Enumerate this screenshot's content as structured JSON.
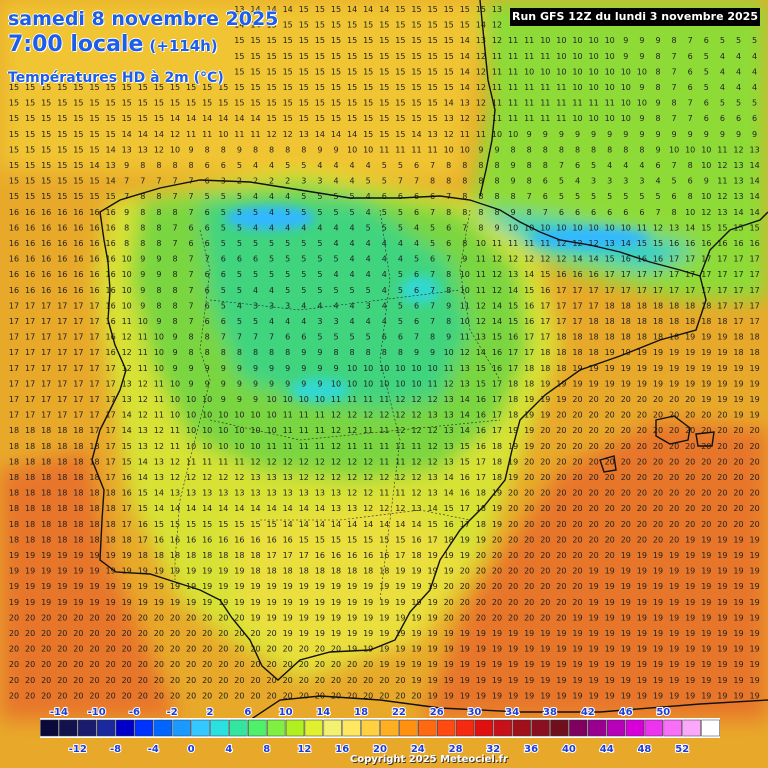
{
  "header": {
    "date_line": "samedi 8 novembre 2025",
    "time_line": "7:00 locale",
    "lead_time": "(+114h)",
    "field_line": "Températures HD à 2m (°C)"
  },
  "run_info": "Run GFS 12Z du lundi 3 novembre 2025",
  "copyright": "Copyright 2025 Meteociel.fr",
  "legend": {
    "upper_labels": [
      "-14",
      "-10",
      "-6",
      "-2",
      "2",
      "6",
      "10",
      "14",
      "18",
      "22",
      "26",
      "30",
      "34",
      "38",
      "42",
      "46",
      "50"
    ],
    "lower_labels": [
      "-12",
      "-8",
      "-4",
      "0",
      "4",
      "8",
      "12",
      "16",
      "20",
      "24",
      "28",
      "32",
      "36",
      "40",
      "44",
      "48",
      "52"
    ],
    "colors": [
      "#0a0a3a",
      "#12124f",
      "#1a1a6e",
      "#1a2a9e",
      "#0000c8",
      "#0033ff",
      "#0066ff",
      "#1a9aff",
      "#33c8ff",
      "#2ae0e0",
      "#33e6a0",
      "#4ff06a",
      "#80f040",
      "#b0f020",
      "#e0f030",
      "#f4f070",
      "#ffe860",
      "#ffd040",
      "#ffb020",
      "#ff9010",
      "#ff6a10",
      "#ff4a10",
      "#f52a10",
      "#e01010",
      "#c8101a",
      "#a0101a",
      "#8a1020",
      "#700f1c",
      "#800060",
      "#9a0090",
      "#b800b8",
      "#d800d8",
      "#ee33ee",
      "#f870f8",
      "#fba8fb",
      "#ffffff"
    ]
  },
  "map": {
    "region": "Iberian Peninsula",
    "palette": {
      "sea": "#e8a92a",
      "sea_warm": "#e8762a",
      "land_cool": "#7ad640",
      "land_cold": "#41d47f",
      "land_mild": "#d2e030",
      "land_mild2": "#ecdf3c",
      "coastline": "#111111",
      "text": "#222222"
    },
    "value_rows": [
      "15 15 15 15 15 14 14 14 14 14 14 14 13 13 13 14 14 14 15 15 15 14 14 14 15 15 15 15 15 15 13 11 11 10 9 9 9 9 8 8 7 7 7 7 7 7 7",
      "15 15 15 15 15 15 14 14 14 14 14 14 14 14 14 14 15 15 15 15 15 15 15 15 15 15 15 15 15 14 12 12 11 10 10 10 9 9 9 9 8 8 8 7 7 7 7",
      "15 15 15 15 15 15 15 15 15 15 15 15 15 15 15 15 15 15 15 15 15 15 15 15 15 15 15 15 14 13 12 11 11 10 10 10 10 10 9 9 9 8 7 6 5 5 5",
      "15 15 15 15 15 15 15 15 15 15 15 15 15 15 15 15 15 15 15 15 15 15 15 15 15 15 15 15 14 12 11 11 11 11 10 10 10 10 9 9 8 7 6 5 4 4 4",
      "15 15 15 15 15 15 15 15 15 15 15 15 15 15 15 15 15 15 15 15 15 15 15 15 15 15 15 15 14 12 11 11 10 10 10 10 10 10 10 10 8 7 6 5 4 4 4",
      "15 15 15 15 15 15 15 15 15 15 15 15 15 15 15 15 15 15 15 15 15 15 15 15 15 15 15 15 14 12 11 11 11 11 11 10 10 10 10 9 8 7 6 5 4 4 4",
      "15 15 15 15 15 15 15 15 15 15 15 15 15 15 15 15 15 15 15 15 15 15 15 15 15 15 15 14 13 12 11 11 11 11 11 11 11 11 10 10 9 8 7 6 5 5 5",
      "15 15 15 15 15 15 15 15 15 15 14 14 14 14 14 14 15 15 15 15 15 15 15 15 15 15 15 13 12 12 11 11 11 11 11 10 10 10 10 9 8 7 7 6 6 6 6",
      "15 15 15 15 15 15 15 14 14 14 12 11 11 10 11 11 12 12 13 14 14 14 15 15 15 14 13 12 11 11 10 10 9 9 9 9 9 9 9 9 9 9 9 9 9 9 9",
      "15 15 15 15 15 15 14 13 13 12 10 9 8 8 9 8 8 8 8 9 9 10 10 11 11 11 11 10 10 9 9 8 8 8 8 8 8 8 8 8 9 10 10 10 11 12 13",
      "15 15 15 15 15 14 13 9 8 8 8 8 6 6 5 4 4 5 5 4 4 4 4 5 5 6 7 8 8 8 8 9 8 8 7 6 5 4 4 4 6 7 8 10 12 13 14",
      "15 15 15 15 15 15 14 7 7 7 7 7 6 3 2 2 2 2 3 3 4 4 5 5 7 7 8 8 8 8 8 9 8 6 5 4 3 3 3 3 4 5 6 9 11 13 14",
      "15 15 15 15 15 15 15 7 8 8 7 7 5 5 5 4 4 4 5 5 5 5 4 6 6 6 6 7 8 8 8 8 7 6 5 5 5 5 5 5 5 6 8 10 12 13 14",
      "16 16 16 16 16 16 16 9 8 8 8 7 6 5 5 5 4 5 5 5 5 5 4 5 5 6 7 8 8 8 8 9 8 7 6 6 6 6 6 6 7 8 10 12 13 14 14",
      "16 16 16 16 16 16 16 8 8 8 7 6 6 5 5 4 4 4 4 4 4 4 5 5 5 4 5 6 7 8 9 10 10 10 10 10 10 10 10 11 12 13 14 15 15 15 15",
      "16 16 16 16 16 16 16 8 8 8 7 6 6 5 5 5 5 5 5 5 4 4 4 4 4 4 5 6 8 10 11 11 11 11 12 12 12 13 14 15 15 16 16 16 16 16 16",
      "16 16 16 16 16 16 16 10 9 9 8 7 7 6 6 6 5 5 5 5 5 4 4 4 4 5 6 7 9 11 12 12 12 12 12 14 14 15 16 16 16 17 17 17 17 17 17",
      "16 16 16 16 16 16 16 10 9 9 8 7 6 6 5 5 5 5 5 5 4 4 4 4 5 6 7 8 10 11 12 13 14 15 16 16 16 17 17 17 17 17 17 17 17 17 17",
      "16 16 16 16 16 16 16 10 9 8 8 7 6 5 5 4 4 5 5 5 5 5 5 4 5 6 7 8 10 11 12 14 15 16 17 17 17 17 17 17 17 17 17 17 17 17 17",
      "17 17 17 17 17 17 16 10 9 8 8 7 6 5 4 3 3 3 4 4 4 4 3 4 5 6 7 9 11 12 14 15 16 17 17 17 17 18 18 18 18 18 18 18 17 17 17",
      "17 17 17 17 17 17 16 11 10 9 8 7 6 6 5 5 4 4 4 3 3 4 4 4 5 6 7 8 10 12 14 15 16 17 17 17 18 18 18 18 18 18 18 18 18 17 17",
      "17 17 17 17 17 17 16 12 11 10 9 8 8 7 7 7 7 6 6 5 5 5 5 6 6 7 8 9 11 13 15 16 17 17 18 18 18 18 18 18 18 18 19 19 19 18 18",
      "17 17 17 17 17 17 16 12 11 10 9 8 8 8 8 8 8 8 9 9 8 8 8 8 8 9 9 10 12 14 16 17 17 18 18 18 18 19 19 19 19 19 19 19 19 18 18",
      "17 17 17 17 17 17 17 12 11 10 9 9 9 9 9 9 9 9 9 9 9 10 10 10 10 10 10 11 13 15 16 17 18 18 18 19 19 19 19 19 19 19 19 19 19 19 19",
      "17 17 17 17 17 17 17 13 12 11 10 9 9 9 9 9 9 9 9 9 10 10 10 10 10 10 11 12 13 15 17 18 18 19 19 19 19 19 19 19 19 19 19 19 19 19 19",
      "17 17 17 17 17 17 17 13 12 11 10 10 10 9 9 9 10 10 10 10 11 11 11 11 12 12 12 13 14 16 17 18 19 19 19 20 20 20 20 20 20 20 20 19 19 19 19",
      "17 17 17 17 17 17 17 14 12 11 10 10 10 10 10 10 10 11 11 11 12 12 12 12 12 12 13 13 14 16 17 18 19 19 20 20 20 20 20 20 20 20 20 20 20 19 19",
      "18 18 18 18 18 17 17 14 13 12 11 10 10 10 10 10 10 11 11 11 12 12 11 11 12 12 12 13 14 16 17 19 19 20 20 20 20 20 20 20 20 20 20 20 20 20 20",
      "18 18 18 18 18 18 17 15 13 12 11 10 10 10 10 10 11 11 11 11 12 11 11 11 11 11 12 13 15 16 18 19 19 20 20 20 20 20 20 20 20 20 20 20 20 20 20",
      "18 18 18 18 18 18 17 15 14 13 12 11 11 11 11 12 12 12 12 12 12 12 12 11 11 12 12 13 15 17 18 19 20 20 20 20 20 20 20 20 20 20 20 20 20 20 20",
      "18 18 18 18 18 18 17 16 14 13 12 12 12 12 12 13 13 13 12 12 12 12 12 12 12 12 13 14 16 17 18 19 20 20 20 20 20 20 20 20 20 20 20 20 20 20 20",
      "18 18 18 18 18 18 18 16 15 14 13 13 13 13 13 13 13 13 13 13 13 12 12 11 11 12 13 14 16 18 19 20 20 20 20 20 20 20 20 20 20 20 20 20 20 20 20",
      "18 18 18 18 18 18 18 17 15 14 14 14 14 14 14 14 14 14 14 14 13 13 12 12 12 13 14 15 17 18 19 20 20 20 20 20 20 20 20 20 20 20 20 20 20 20 20",
      "18 18 18 18 18 18 18 17 16 15 15 15 15 15 15 15 15 14 14 14 14 14 14 14 14 14 15 16 17 18 19 20 20 20 20 20 20 20 20 20 20 20 20 20 20 20 20",
      "18 18 18 18 18 18 18 18 17 16 16 16 16 16 16 16 16 16 15 15 15 15 15 15 15 16 17 18 19 19 20 20 20 20 20 20 20 20 20 20 20 20 19 19 19 19 19",
      "19 19 19 19 19 19 19 19 18 18 18 18 18 18 18 18 17 17 17 16 16 16 16 16 17 18 19 19 19 20 20 20 20 20 20 20 20 20 19 19 19 19 19 19 19 19 19",
      "19 19 19 19 19 19 19 19 19 19 19 19 19 19 19 18 18 18 18 18 18 18 18 18 19 19 19 19 20 20 20 20 20 20 20 20 19 19 19 19 19 19 19 19 19 19 19",
      "19 19 19 19 19 19 19 19 19 19 19 19 19 19 19 19 19 19 19 19 19 19 19 19 19 19 19 20 20 20 20 20 20 20 20 20 19 19 19 19 19 19 19 19 19 19 19",
      "19 19 19 19 19 19 19 19 19 19 19 19 19 19 19 19 19 19 19 19 19 19 19 19 19 19 19 20 20 20 20 20 20 20 20 20 19 19 19 19 19 19 19 19 19 19 19",
      "20 20 20 20 20 20 20 20 20 20 20 20 20 20 20 19 19 19 19 19 19 19 19 19 19 19 19 20 20 20 20 20 20 20 20 19 19 19 19 19 19 19 19 19 19 19 19",
      "20 20 20 20 20 20 20 20 20 20 20 20 20 20 20 20 20 19 19 19 19 19 19 19 19 19 19 19 19 19 19 19 19 19 19 19 19 19 19 19 19 19 19 19 19 19 19",
      "20 20 20 20 20 20 20 20 20 20 20 20 20 20 20 20 20 20 20 20 20 19 19 19 19 19 19 19 19 19 19 19 19 19 19 19 19 19 19 19 19 19 19 19 19 19 19",
      "20 20 20 20 20 20 20 20 20 20 20 20 20 20 20 20 20 20 20 20 20 20 20 19 19 19 19 19 19 19 19 19 19 19 19 19 19 19 19 19 19 19 19 19 19 19 19",
      "20 20 20 20 20 20 20 20 20 20 20 20 20 20 20 20 20 20 20 20 20 20 20 20 20 19 19 19 19 19 19 19 19 19 19 19 19 19 19 19 19 19 19 19 19 19 19",
      "20 20 20 20 20 20 20 20 20 20 20 20 20 20 20 20 20 20 20 20 20 20 20 20 20 20 19 19 19 19 19 19 19 19 19 19 19 19 19 19 19 19 19 19 19 19 19"
    ]
  }
}
